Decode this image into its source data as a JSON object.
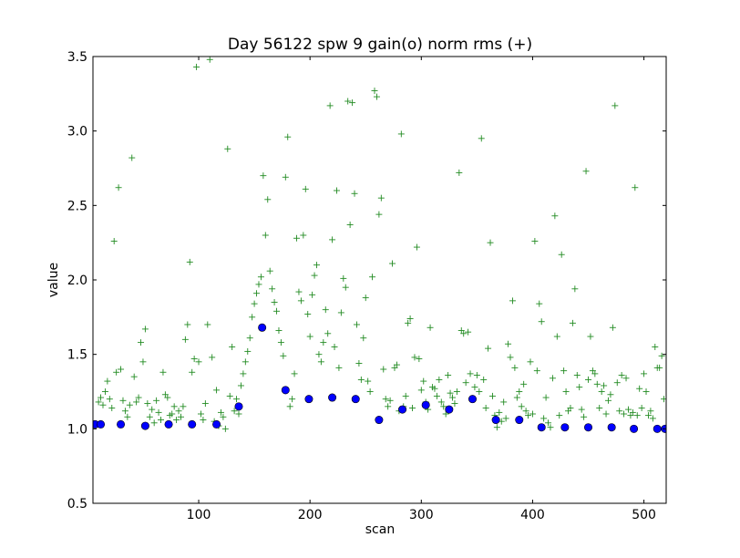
{
  "chart_data": {
    "type": "scatter",
    "title": "Day 56122 spw 9 gain(o) norm rms (+)",
    "xlabel": "scan",
    "ylabel": "value",
    "xlim": [
      5,
      520
    ],
    "ylim": [
      0.5,
      3.5
    ],
    "x_ticks": [
      100,
      200,
      300,
      400,
      500
    ],
    "x_tick_labels": [
      "100",
      "200",
      "300",
      "400",
      "500"
    ],
    "y_ticks": [
      0.5,
      1.0,
      1.5,
      2.0,
      2.5,
      3.0,
      3.5
    ],
    "y_tick_labels": [
      "0.5",
      "1.0",
      "1.5",
      "2.0",
      "2.5",
      "3.0",
      "3.5"
    ],
    "grid": false,
    "legend": "none",
    "series": [
      {
        "marker": "plus",
        "color": "#228b22",
        "points": [
          [
            8,
            1.03
          ],
          [
            10,
            1.18
          ],
          [
            12,
            1.21
          ],
          [
            14,
            1.16
          ],
          [
            16,
            1.25
          ],
          [
            18,
            1.32
          ],
          [
            20,
            1.2
          ],
          [
            22,
            1.14
          ],
          [
            24,
            2.26
          ],
          [
            26,
            1.38
          ],
          [
            28,
            2.62
          ],
          [
            30,
            1.4
          ],
          [
            32,
            1.19
          ],
          [
            34,
            1.12
          ],
          [
            36,
            1.08
          ],
          [
            38,
            1.16
          ],
          [
            40,
            2.82
          ],
          [
            42,
            1.35
          ],
          [
            44,
            1.18
          ],
          [
            46,
            1.21
          ],
          [
            48,
            1.58
          ],
          [
            50,
            1.45
          ],
          [
            52,
            1.67
          ],
          [
            54,
            1.17
          ],
          [
            56,
            1.08
          ],
          [
            58,
            1.13
          ],
          [
            60,
            1.04
          ],
          [
            62,
            1.19
          ],
          [
            64,
            1.11
          ],
          [
            66,
            1.06
          ],
          [
            68,
            1.38
          ],
          [
            70,
            1.23
          ],
          [
            72,
            1.21
          ],
          [
            74,
            1.09
          ],
          [
            76,
            1.1
          ],
          [
            78,
            1.15
          ],
          [
            80,
            1.06
          ],
          [
            82,
            1.12
          ],
          [
            84,
            1.08
          ],
          [
            86,
            1.15
          ],
          [
            88,
            1.6
          ],
          [
            90,
            1.7
          ],
          [
            92,
            2.12
          ],
          [
            94,
            1.38
          ],
          [
            96,
            1.47
          ],
          [
            98,
            3.43
          ],
          [
            100,
            1.45
          ],
          [
            102,
            1.1
          ],
          [
            104,
            1.06
          ],
          [
            106,
            1.17
          ],
          [
            108,
            1.7
          ],
          [
            110,
            3.48
          ],
          [
            112,
            1.48
          ],
          [
            114,
            1.05
          ],
          [
            116,
            1.26
          ],
          [
            118,
            1.02
          ],
          [
            120,
            1.11
          ],
          [
            122,
            1.08
          ],
          [
            124,
            1.0
          ],
          [
            126,
            2.88
          ],
          [
            128,
            1.22
          ],
          [
            130,
            1.55
          ],
          [
            132,
            1.12
          ],
          [
            134,
            1.2
          ],
          [
            136,
            1.1
          ],
          [
            138,
            1.29
          ],
          [
            140,
            1.37
          ],
          [
            142,
            1.45
          ],
          [
            144,
            1.52
          ],
          [
            146,
            1.61
          ],
          [
            148,
            1.75
          ],
          [
            150,
            1.84
          ],
          [
            152,
            1.91
          ],
          [
            154,
            1.97
          ],
          [
            156,
            2.02
          ],
          [
            158,
            2.7
          ],
          [
            160,
            2.3
          ],
          [
            162,
            2.54
          ],
          [
            164,
            2.06
          ],
          [
            166,
            1.94
          ],
          [
            168,
            1.85
          ],
          [
            170,
            1.79
          ],
          [
            172,
            1.66
          ],
          [
            174,
            1.58
          ],
          [
            176,
            1.49
          ],
          [
            178,
            2.69
          ],
          [
            180,
            2.96
          ],
          [
            182,
            1.15
          ],
          [
            184,
            1.2
          ],
          [
            186,
            1.37
          ],
          [
            188,
            2.28
          ],
          [
            190,
            1.92
          ],
          [
            192,
            1.86
          ],
          [
            194,
            2.3
          ],
          [
            196,
            2.61
          ],
          [
            198,
            1.77
          ],
          [
            200,
            1.62
          ],
          [
            202,
            1.9
          ],
          [
            204,
            2.03
          ],
          [
            206,
            2.1
          ],
          [
            208,
            1.5
          ],
          [
            210,
            1.45
          ],
          [
            212,
            1.58
          ],
          [
            214,
            1.8
          ],
          [
            216,
            1.64
          ],
          [
            218,
            3.17
          ],
          [
            220,
            2.27
          ],
          [
            222,
            1.55
          ],
          [
            224,
            2.6
          ],
          [
            226,
            1.41
          ],
          [
            228,
            1.78
          ],
          [
            230,
            2.01
          ],
          [
            232,
            1.95
          ],
          [
            234,
            3.2
          ],
          [
            236,
            2.37
          ],
          [
            238,
            3.19
          ],
          [
            240,
            2.58
          ],
          [
            242,
            1.7
          ],
          [
            244,
            1.44
          ],
          [
            246,
            1.33
          ],
          [
            248,
            1.61
          ],
          [
            250,
            1.88
          ],
          [
            252,
            1.32
          ],
          [
            254,
            1.25
          ],
          [
            256,
            2.02
          ],
          [
            258,
            3.27
          ],
          [
            260,
            3.23
          ],
          [
            262,
            2.44
          ],
          [
            264,
            2.55
          ],
          [
            266,
            1.4
          ],
          [
            268,
            1.2
          ],
          [
            270,
            1.15
          ],
          [
            272,
            1.19
          ],
          [
            274,
            2.11
          ],
          [
            276,
            1.41
          ],
          [
            278,
            1.43
          ],
          [
            280,
            1.12
          ],
          [
            282,
            2.98
          ],
          [
            284,
            1.15
          ],
          [
            286,
            1.22
          ],
          [
            288,
            1.71
          ],
          [
            290,
            1.74
          ],
          [
            292,
            1.14
          ],
          [
            294,
            1.48
          ],
          [
            296,
            2.22
          ],
          [
            298,
            1.47
          ],
          [
            300,
            1.26
          ],
          [
            302,
            1.32
          ],
          [
            304,
            1.18
          ],
          [
            306,
            1.13
          ],
          [
            308,
            1.68
          ],
          [
            310,
            1.28
          ],
          [
            312,
            1.27
          ],
          [
            314,
            1.22
          ],
          [
            316,
            1.33
          ],
          [
            318,
            1.18
          ],
          [
            320,
            1.15
          ],
          [
            322,
            1.1
          ],
          [
            324,
            1.36
          ],
          [
            326,
            1.24
          ],
          [
            328,
            1.21
          ],
          [
            330,
            1.17
          ],
          [
            332,
            1.25
          ],
          [
            334,
            2.72
          ],
          [
            336,
            1.66
          ],
          [
            338,
            1.64
          ],
          [
            340,
            1.31
          ],
          [
            342,
            1.65
          ],
          [
            344,
            1.37
          ],
          [
            346,
            1.2
          ],
          [
            348,
            1.28
          ],
          [
            350,
            1.36
          ],
          [
            352,
            1.25
          ],
          [
            354,
            2.95
          ],
          [
            356,
            1.33
          ],
          [
            358,
            1.14
          ],
          [
            360,
            1.54
          ],
          [
            362,
            2.25
          ],
          [
            364,
            1.22
          ],
          [
            366,
            1.09
          ],
          [
            368,
            1.01
          ],
          [
            370,
            1.11
          ],
          [
            372,
            1.05
          ],
          [
            374,
            1.18
          ],
          [
            376,
            1.07
          ],
          [
            378,
            1.57
          ],
          [
            380,
            1.48
          ],
          [
            382,
            1.86
          ],
          [
            384,
            1.41
          ],
          [
            386,
            1.21
          ],
          [
            388,
            1.25
          ],
          [
            390,
            1.15
          ],
          [
            392,
            1.3
          ],
          [
            394,
            1.12
          ],
          [
            396,
            1.09
          ],
          [
            398,
            1.45
          ],
          [
            400,
            1.1
          ],
          [
            402,
            2.26
          ],
          [
            404,
            1.39
          ],
          [
            406,
            1.84
          ],
          [
            408,
            1.72
          ],
          [
            410,
            1.07
          ],
          [
            412,
            1.21
          ],
          [
            414,
            1.04
          ],
          [
            416,
            1.01
          ],
          [
            418,
            1.34
          ],
          [
            420,
            2.43
          ],
          [
            422,
            1.62
          ],
          [
            424,
            1.09
          ],
          [
            426,
            2.17
          ],
          [
            428,
            1.39
          ],
          [
            430,
            1.25
          ],
          [
            432,
            1.12
          ],
          [
            434,
            1.14
          ],
          [
            436,
            1.71
          ],
          [
            438,
            1.94
          ],
          [
            440,
            1.36
          ],
          [
            442,
            1.28
          ],
          [
            444,
            1.13
          ],
          [
            446,
            1.08
          ],
          [
            448,
            2.73
          ],
          [
            450,
            1.33
          ],
          [
            452,
            1.62
          ],
          [
            454,
            1.39
          ],
          [
            456,
            1.37
          ],
          [
            458,
            1.3
          ],
          [
            460,
            1.14
          ],
          [
            462,
            1.25
          ],
          [
            464,
            1.29
          ],
          [
            466,
            1.1
          ],
          [
            468,
            1.19
          ],
          [
            470,
            1.23
          ],
          [
            472,
            1.68
          ],
          [
            474,
            3.17
          ],
          [
            476,
            1.31
          ],
          [
            478,
            1.12
          ],
          [
            480,
            1.36
          ],
          [
            482,
            1.1
          ],
          [
            484,
            1.34
          ],
          [
            486,
            1.13
          ],
          [
            488,
            1.09
          ],
          [
            490,
            1.11
          ],
          [
            492,
            2.62
          ],
          [
            494,
            1.09
          ],
          [
            496,
            1.27
          ],
          [
            498,
            1.14
          ],
          [
            500,
            1.37
          ],
          [
            502,
            1.25
          ],
          [
            504,
            1.09
          ],
          [
            506,
            1.12
          ],
          [
            508,
            1.07
          ],
          [
            510,
            1.55
          ],
          [
            512,
            1.41
          ],
          [
            514,
            1.41
          ],
          [
            516,
            1.49
          ],
          [
            518,
            1.2
          ]
        ]
      },
      {
        "marker": "circle",
        "color": "#0000ff",
        "points": [
          [
            7,
            1.03
          ],
          [
            12,
            1.03
          ],
          [
            30,
            1.03
          ],
          [
            52,
            1.02
          ],
          [
            73,
            1.03
          ],
          [
            94,
            1.03
          ],
          [
            116,
            1.03
          ],
          [
            136,
            1.15
          ],
          [
            157,
            1.68
          ],
          [
            178,
            1.26
          ],
          [
            199,
            1.2
          ],
          [
            220,
            1.21
          ],
          [
            241,
            1.2
          ],
          [
            262,
            1.06
          ],
          [
            283,
            1.13
          ],
          [
            304,
            1.16
          ],
          [
            325,
            1.13
          ],
          [
            346,
            1.2
          ],
          [
            367,
            1.06
          ],
          [
            388,
            1.06
          ],
          [
            408,
            1.01
          ],
          [
            429,
            1.01
          ],
          [
            450,
            1.01
          ],
          [
            471,
            1.01
          ],
          [
            491,
            1.0
          ],
          [
            512,
            1.0
          ],
          [
            519,
            1.0
          ]
        ]
      }
    ]
  }
}
